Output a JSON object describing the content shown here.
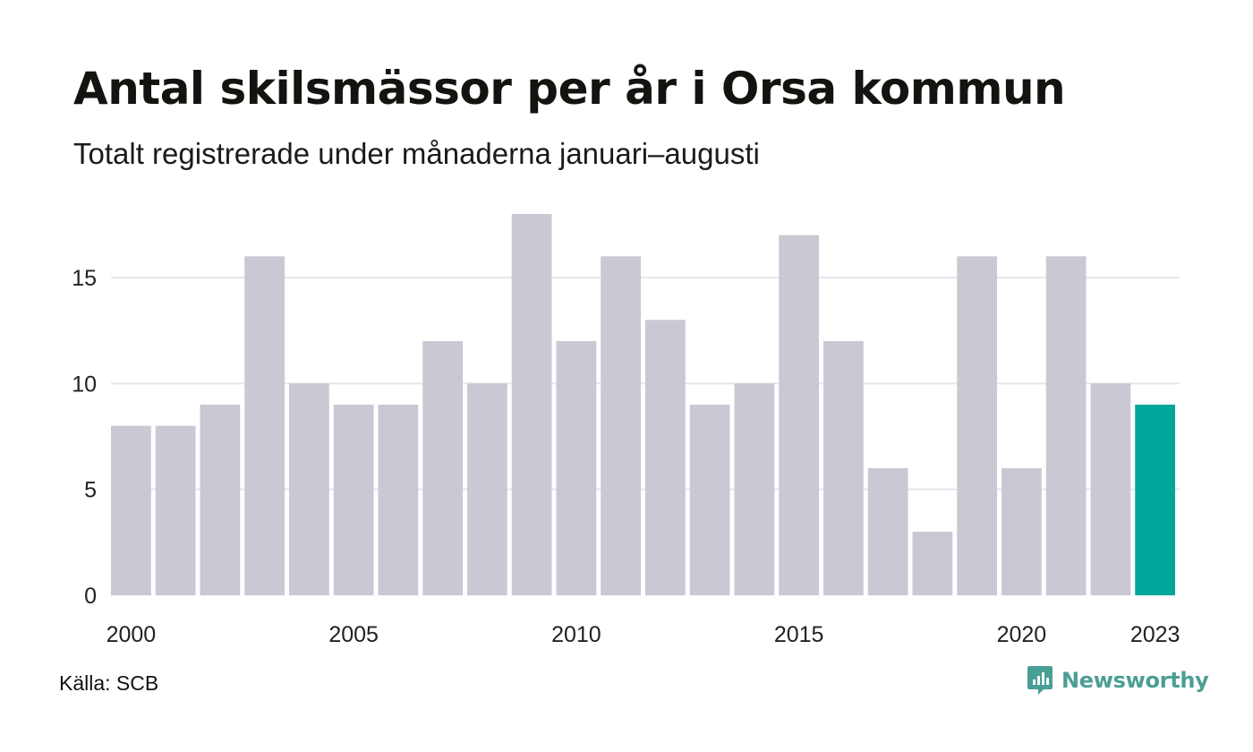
{
  "title": "Antal skilsmässor per år i Orsa kommun",
  "subtitle": "Totalt registrerade under månaderna januari–augusti",
  "source": "Källa: SCB",
  "brand": {
    "name": "Newsworthy",
    "icon": "newsworthy-logo-icon",
    "color": "#4b9e95"
  },
  "chart_data": {
    "type": "bar",
    "categories": [
      "2000",
      "2001",
      "2002",
      "2003",
      "2004",
      "2005",
      "2006",
      "2007",
      "2008",
      "2009",
      "2010",
      "2011",
      "2012",
      "2013",
      "2014",
      "2015",
      "2016",
      "2017",
      "2018",
      "2019",
      "2020",
      "2021",
      "2022",
      "2023"
    ],
    "values": [
      8,
      8,
      9,
      16,
      10,
      9,
      9,
      12,
      10,
      18,
      12,
      16,
      13,
      9,
      10,
      17,
      12,
      6,
      3,
      16,
      6,
      16,
      10,
      9
    ],
    "x_tick_labels": [
      "2000",
      "2005",
      "2010",
      "2015",
      "2020",
      "2023"
    ],
    "y_ticks": [
      0,
      5,
      10,
      15
    ],
    "ylim": [
      0,
      18
    ],
    "grid": true,
    "colors": {
      "default": "#c9c8d3",
      "highlight": "#00a69a",
      "grid": "#e6e6ea"
    },
    "highlight_category": "2023",
    "xlabel": "",
    "ylabel": ""
  }
}
